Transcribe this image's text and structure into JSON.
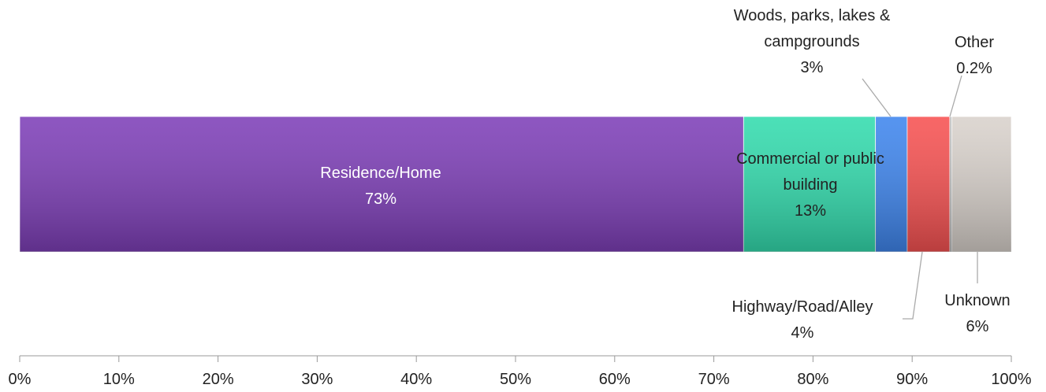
{
  "chart_data": {
    "type": "stacked_bar",
    "categories": [
      "Residence/Home",
      "Commercial or public building",
      "Woods, parks, lakes & campgrounds",
      "Highway/Road/Alley",
      "Other",
      "Unknown"
    ],
    "values": [
      73.0,
      13.3,
      3.2,
      4.3,
      0.2,
      6.0
    ],
    "value_labels": [
      "73%",
      "13%",
      "3%",
      "4%",
      "0.2%",
      "6%"
    ],
    "colors": [
      "#7e3fb8",
      "#33dcae",
      "#3f86ee",
      "#f75252",
      "#b0b0b0",
      "#d9d2cc"
    ],
    "xlim": [
      0,
      100
    ],
    "xticks": [
      {
        "value": 0,
        "label": "0%"
      },
      {
        "value": 10,
        "label": "10%"
      },
      {
        "value": 20,
        "label": "20%"
      },
      {
        "value": 30,
        "label": "30%"
      },
      {
        "value": 40,
        "label": "40%"
      },
      {
        "value": 50,
        "label": "50%"
      },
      {
        "value": 60,
        "label": "60%"
      },
      {
        "value": 70,
        "label": "70%"
      },
      {
        "value": 80,
        "label": "80%"
      },
      {
        "value": 90,
        "label": "90%"
      },
      {
        "value": 100,
        "label": "100%"
      }
    ]
  }
}
